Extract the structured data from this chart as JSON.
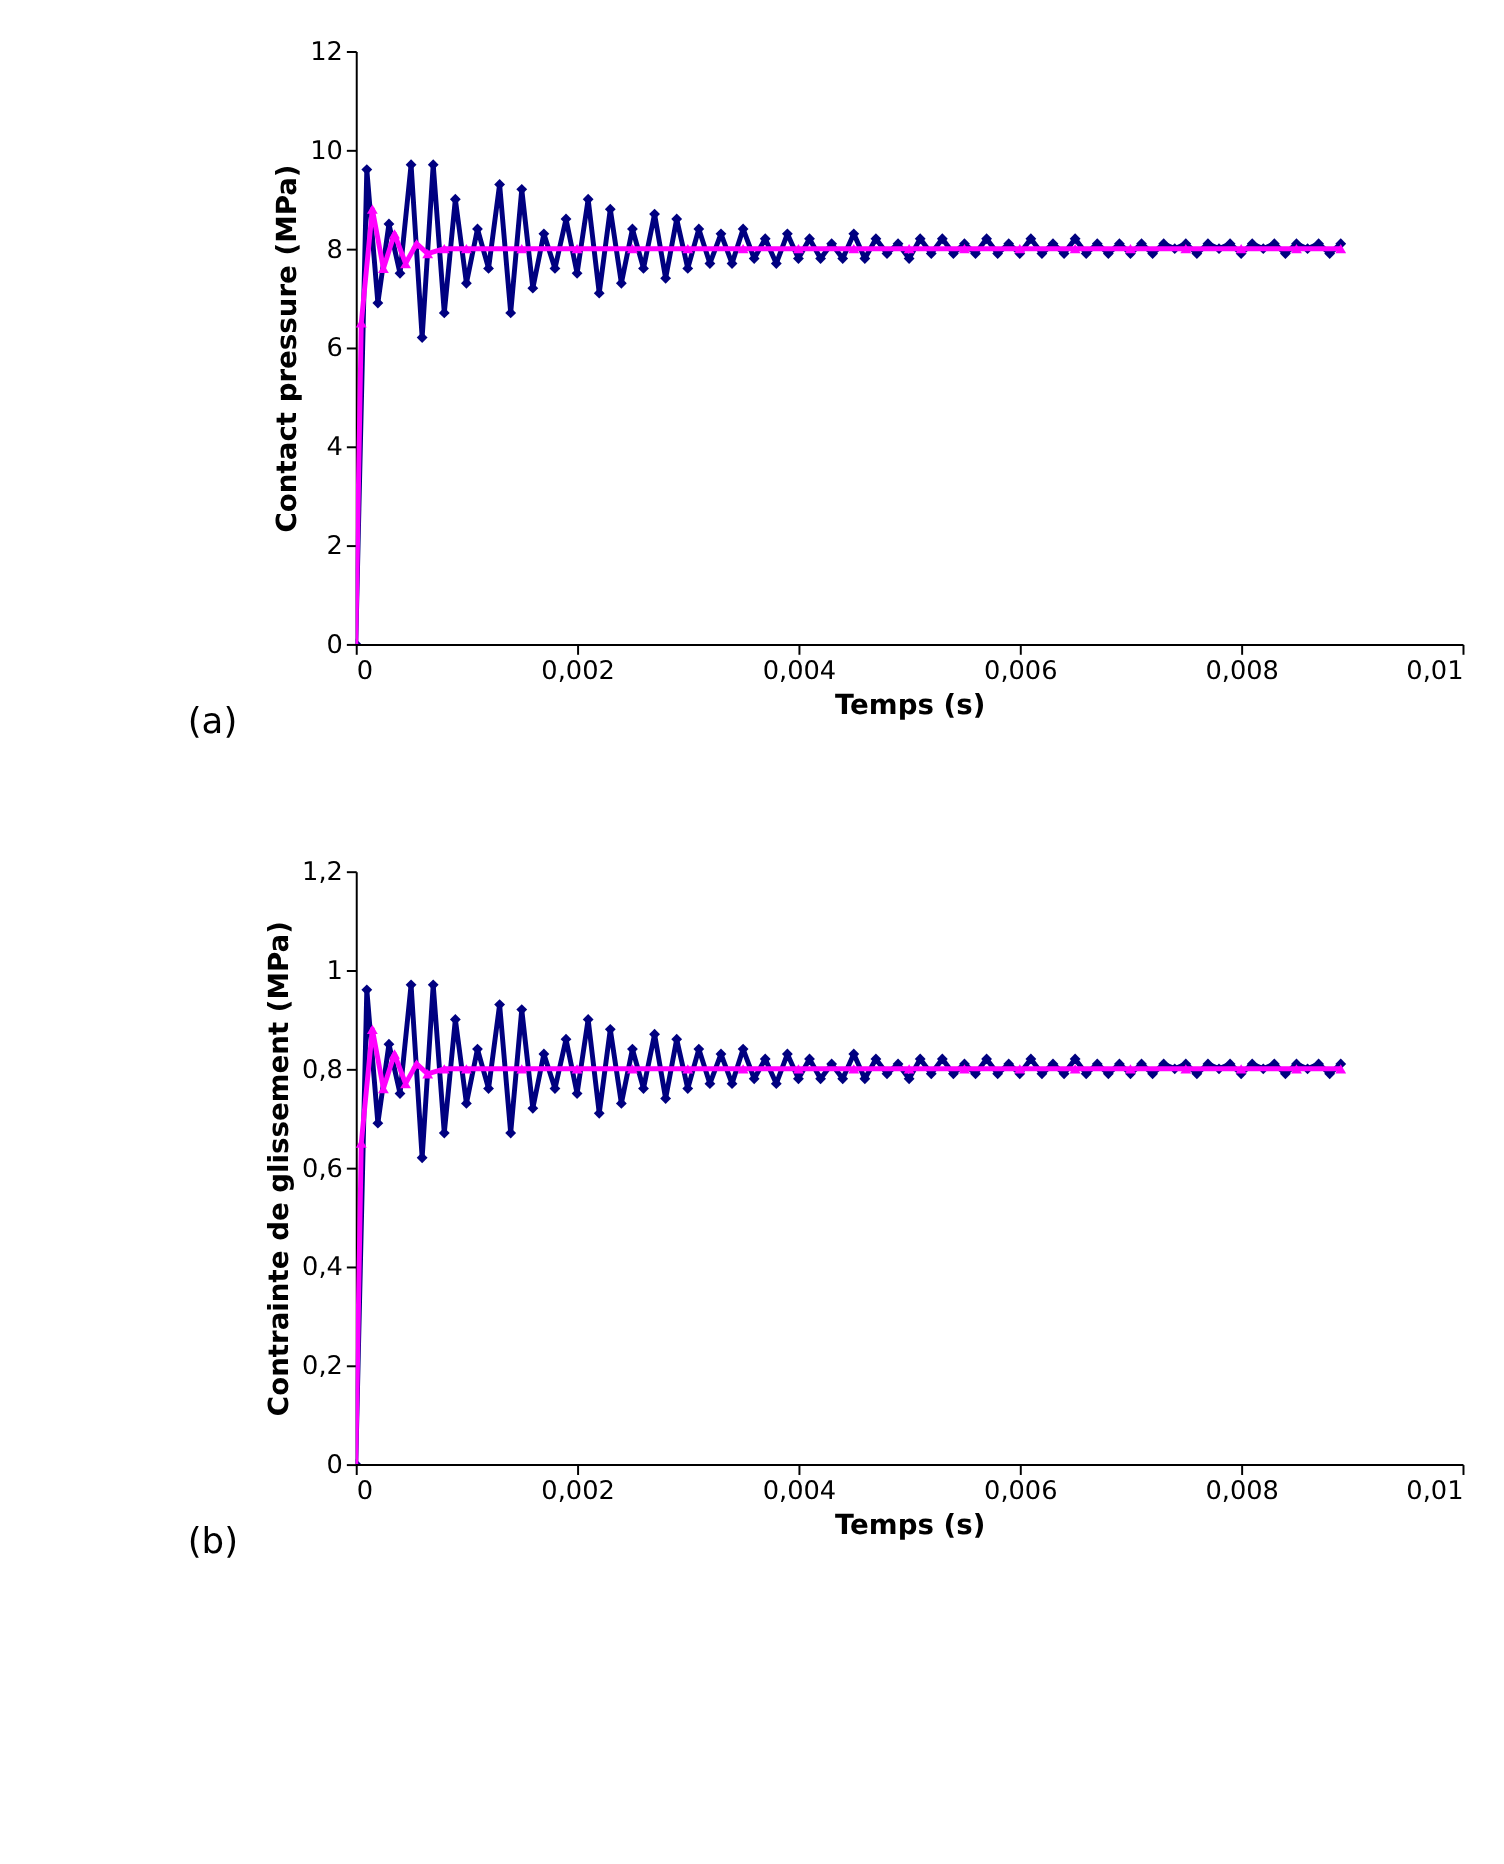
{
  "chart_data": [
    {
      "type": "line",
      "xlabel": "Temps (s)",
      "ylabel": "Contact pressure (MPa)",
      "annotations": [
        "(a)"
      ],
      "grid": false,
      "xlim": [
        0,
        0.01
      ],
      "xticks": [
        0,
        {
          "value": 0.002,
          "label": "0,002"
        },
        {
          "value": 0.004,
          "label": "0,004"
        },
        {
          "value": 0.006,
          "label": "0,006"
        },
        {
          "value": 0.008,
          "label": "0,008"
        },
        {
          "value": 0.01,
          "label": "0,01"
        }
      ],
      "ylim": [
        0,
        12
      ],
      "yticks": [
        0,
        2,
        4,
        6,
        8,
        10,
        12
      ],
      "series": [
        {
          "color": "#000080",
          "marker": "diamond",
          "x": [
            0,
            0.0001,
            0.0002,
            0.0003,
            0.0004,
            0.0005,
            0.0006,
            0.0007,
            0.0008,
            0.0009,
            0.001,
            0.0011,
            0.0012,
            0.0013,
            0.0014,
            0.0015,
            0.0016,
            0.0017,
            0.0018,
            0.0019,
            0.002,
            0.0021,
            0.0022,
            0.0023,
            0.0024,
            0.0025,
            0.0026,
            0.0027,
            0.0028,
            0.0029,
            0.003,
            0.0031,
            0.0032,
            0.0033,
            0.0034,
            0.0035,
            0.0036,
            0.0037,
            0.0038,
            0.0039,
            0.004,
            0.0041,
            0.0042,
            0.0043,
            0.0044,
            0.0045,
            0.0046,
            0.0047,
            0.0048,
            0.0049,
            0.005,
            0.0051,
            0.0052,
            0.0053,
            0.0054,
            0.0055,
            0.0056,
            0.0057,
            0.0058,
            0.0059,
            0.006,
            0.0061,
            0.0062,
            0.0063,
            0.0064,
            0.0065,
            0.0066,
            0.0067,
            0.0068,
            0.0069,
            0.007,
            0.0071,
            0.0072,
            0.0073,
            0.0074,
            0.0075,
            0.0076,
            0.0077,
            0.0078,
            0.0079,
            0.008,
            0.0081,
            0.0082,
            0.0083,
            0.0084,
            0.0085,
            0.0086,
            0.0087,
            0.0088,
            0.0089
          ],
          "values": [
            0,
            9.6,
            6.9,
            8.5,
            7.5,
            9.7,
            6.2,
            9.7,
            6.7,
            9.0,
            7.3,
            8.4,
            7.6,
            9.3,
            6.7,
            9.2,
            7.2,
            8.3,
            7.6,
            8.6,
            7.5,
            9.0,
            7.1,
            8.8,
            7.3,
            8.4,
            7.6,
            8.7,
            7.4,
            8.6,
            7.6,
            8.4,
            7.7,
            8.3,
            7.7,
            8.4,
            7.8,
            8.2,
            7.7,
            8.3,
            7.8,
            8.2,
            7.8,
            8.1,
            7.8,
            8.3,
            7.8,
            8.2,
            7.9,
            8.1,
            7.8,
            8.2,
            7.9,
            8.2,
            7.9,
            8.1,
            7.9,
            8.2,
            7.9,
            8.1,
            7.9,
            8.2,
            7.9,
            8.1,
            7.9,
            8.2,
            7.9,
            8.1,
            7.9,
            8.1,
            7.9,
            8.1,
            7.9,
            8.1,
            8.0,
            8.1,
            7.9,
            8.1,
            8.0,
            8.1,
            7.9,
            8.1,
            8.0,
            8.1,
            7.9,
            8.1,
            8.0,
            8.1,
            7.9,
            8.1
          ]
        },
        {
          "color": "#ff00ff",
          "marker": "triangle",
          "x": [
            0,
            5e-05,
            0.00015,
            0.00025,
            0.00035,
            0.00045,
            0.00055,
            0.00065,
            0.0008,
            0.001,
            0.0015,
            0.002,
            0.0025,
            0.003,
            0.0035,
            0.004,
            0.0045,
            0.005,
            0.0055,
            0.006,
            0.0065,
            0.007,
            0.0075,
            0.008,
            0.0085,
            0.0089
          ],
          "values": [
            0,
            6.5,
            8.8,
            7.6,
            8.3,
            7.7,
            8.1,
            7.9,
            8.0,
            8.0,
            8.0,
            8.0,
            8.0,
            8.0,
            8.0,
            8.0,
            8.0,
            8.0,
            8.0,
            8.0,
            8.0,
            8.0,
            8.0,
            8.0,
            8.0,
            8.0
          ]
        }
      ]
    },
    {
      "type": "line",
      "xlabel": "Temps (s)",
      "ylabel": "Contrainte de glissement (MPa)",
      "annotations": [
        "(b)"
      ],
      "grid": false,
      "xlim": [
        0,
        0.01
      ],
      "xticks": [
        0,
        {
          "value": 0.002,
          "label": "0,002"
        },
        {
          "value": 0.004,
          "label": "0,004"
        },
        {
          "value": 0.006,
          "label": "0,006"
        },
        {
          "value": 0.008,
          "label": "0,008"
        },
        {
          "value": 0.01,
          "label": "0,01"
        }
      ],
      "ylim": [
        0,
        1.2
      ],
      "yticks": [
        0,
        {
          "value": 0.2,
          "label": "0,2"
        },
        {
          "value": 0.4,
          "label": "0,4"
        },
        {
          "value": 0.6,
          "label": "0,6"
        },
        {
          "value": 0.8,
          "label": "0,8"
        },
        1,
        {
          "value": 1.2,
          "label": "1,2"
        }
      ],
      "series": [
        {
          "color": "#000080",
          "marker": "diamond",
          "x": [
            0,
            0.0001,
            0.0002,
            0.0003,
            0.0004,
            0.0005,
            0.0006,
            0.0007,
            0.0008,
            0.0009,
            0.001,
            0.0011,
            0.0012,
            0.0013,
            0.0014,
            0.0015,
            0.0016,
            0.0017,
            0.0018,
            0.0019,
            0.002,
            0.0021,
            0.0022,
            0.0023,
            0.0024,
            0.0025,
            0.0026,
            0.0027,
            0.0028,
            0.0029,
            0.003,
            0.0031,
            0.0032,
            0.0033,
            0.0034,
            0.0035,
            0.0036,
            0.0037,
            0.0038,
            0.0039,
            0.004,
            0.0041,
            0.0042,
            0.0043,
            0.0044,
            0.0045,
            0.0046,
            0.0047,
            0.0048,
            0.0049,
            0.005,
            0.0051,
            0.0052,
            0.0053,
            0.0054,
            0.0055,
            0.0056,
            0.0057,
            0.0058,
            0.0059,
            0.006,
            0.0061,
            0.0062,
            0.0063,
            0.0064,
            0.0065,
            0.0066,
            0.0067,
            0.0068,
            0.0069,
            0.007,
            0.0071,
            0.0072,
            0.0073,
            0.0074,
            0.0075,
            0.0076,
            0.0077,
            0.0078,
            0.0079,
            0.008,
            0.0081,
            0.0082,
            0.0083,
            0.0084,
            0.0085,
            0.0086,
            0.0087,
            0.0088,
            0.0089
          ],
          "values": [
            0,
            0.96,
            0.69,
            0.85,
            0.75,
            0.97,
            0.62,
            0.97,
            0.67,
            0.9,
            0.73,
            0.84,
            0.76,
            0.93,
            0.67,
            0.92,
            0.72,
            0.83,
            0.76,
            0.86,
            0.75,
            0.9,
            0.71,
            0.88,
            0.73,
            0.84,
            0.76,
            0.87,
            0.74,
            0.86,
            0.76,
            0.84,
            0.77,
            0.83,
            0.77,
            0.84,
            0.78,
            0.82,
            0.77,
            0.83,
            0.78,
            0.82,
            0.78,
            0.81,
            0.78,
            0.83,
            0.78,
            0.82,
            0.79,
            0.81,
            0.78,
            0.82,
            0.79,
            0.82,
            0.79,
            0.81,
            0.79,
            0.82,
            0.79,
            0.81,
            0.79,
            0.82,
            0.79,
            0.81,
            0.79,
            0.82,
            0.79,
            0.81,
            0.79,
            0.81,
            0.79,
            0.81,
            0.79,
            0.81,
            0.8,
            0.81,
            0.79,
            0.81,
            0.8,
            0.81,
            0.79,
            0.81,
            0.8,
            0.81,
            0.79,
            0.81,
            0.8,
            0.81,
            0.79,
            0.81
          ]
        },
        {
          "color": "#ff00ff",
          "marker": "triangle",
          "x": [
            0,
            5e-05,
            0.00015,
            0.00025,
            0.00035,
            0.00045,
            0.00055,
            0.00065,
            0.0008,
            0.001,
            0.0015,
            0.002,
            0.0025,
            0.003,
            0.0035,
            0.004,
            0.0045,
            0.005,
            0.0055,
            0.006,
            0.0065,
            0.007,
            0.0075,
            0.008,
            0.0085,
            0.0089
          ],
          "values": [
            0,
            0.65,
            0.88,
            0.76,
            0.83,
            0.77,
            0.81,
            0.79,
            0.8,
            0.8,
            0.8,
            0.8,
            0.8,
            0.8,
            0.8,
            0.8,
            0.8,
            0.8,
            0.8,
            0.8,
            0.8,
            0.8,
            0.8,
            0.8,
            0.8,
            0.8
          ]
        }
      ]
    }
  ]
}
